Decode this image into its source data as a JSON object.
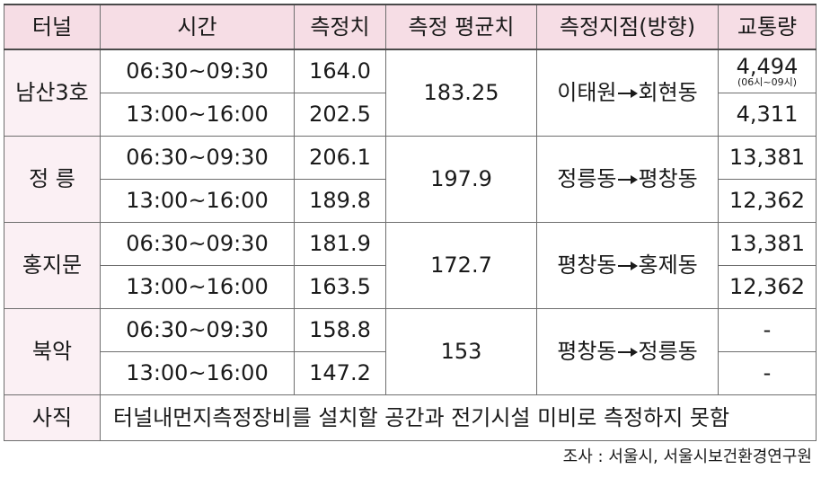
{
  "headers": [
    "터널",
    "시간",
    "측정치",
    "측정 평균치",
    "측정지점(방향)",
    "교통량"
  ],
  "tunnels": [
    {
      "name": "남산3호",
      "avg": "183.25",
      "from": "이태원",
      "to": "회현동",
      "rows": [
        {
          "time": "06:30~09:30",
          "value": "164.0",
          "traffic": "4,494",
          "traffic_note": "(06시~09시)"
        },
        {
          "time": "13:00~16:00",
          "value": "202.5",
          "traffic": "4,311",
          "traffic_note": ""
        }
      ]
    },
    {
      "name": "정 릉",
      "avg": "197.9",
      "from": "정릉동",
      "to": "평창동",
      "rows": [
        {
          "time": "06:30~09:30",
          "value": "206.1",
          "traffic": "13,381",
          "traffic_note": ""
        },
        {
          "time": "13:00~16:00",
          "value": "189.8",
          "traffic": "12,362",
          "traffic_note": ""
        }
      ]
    },
    {
      "name": "홍지문",
      "avg": "172.7",
      "from": "평창동",
      "to": "홍제동",
      "rows": [
        {
          "time": "06:30~09:30",
          "value": "181.9",
          "traffic": "13,381",
          "traffic_note": ""
        },
        {
          "time": "13:00~16:00",
          "value": "163.5",
          "traffic": "12,362",
          "traffic_note": ""
        }
      ]
    },
    {
      "name": "북악",
      "avg": "153",
      "from": "평창동",
      "to": "정릉동",
      "rows": [
        {
          "time": "06:30~09:30",
          "value": "158.8",
          "traffic": "-",
          "traffic_note": ""
        },
        {
          "time": "13:00~16:00",
          "value": "147.2",
          "traffic": "-",
          "traffic_note": ""
        }
      ]
    }
  ],
  "last_row": {
    "name": "사직",
    "note": "터널내먼지측정장비를 설치할 공간과 전기시설 미비로 측정하지 못함"
  },
  "source": "조사 : 서울시, 서울시보건환경연구원"
}
